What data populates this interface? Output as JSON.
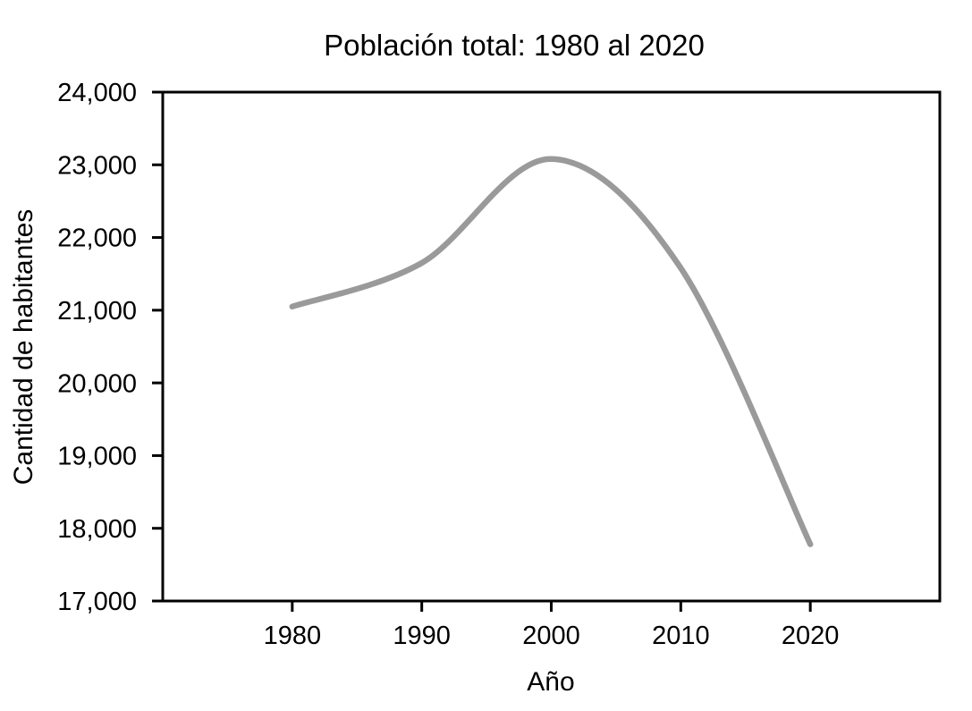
{
  "chart_data": {
    "type": "line",
    "title": "Población total: 1980 al 2020",
    "xlabel": "Año",
    "ylabel": "Cantidad de habitantes",
    "x": [
      1980,
      1990,
      2000,
      2010,
      2020
    ],
    "series": [
      {
        "name": "Población total",
        "values": [
          21050,
          21650,
          23080,
          21580,
          17780
        ]
      }
    ],
    "xlim": [
      1970,
      2030
    ],
    "ylim": [
      17000,
      24000
    ],
    "x_ticks": [
      {
        "value": 1980,
        "label": "1980"
      },
      {
        "value": 1990,
        "label": "1990"
      },
      {
        "value": 2000,
        "label": "2000"
      },
      {
        "value": 2010,
        "label": "2010"
      },
      {
        "value": 2020,
        "label": "2020"
      }
    ],
    "y_ticks": [
      {
        "value": 17000,
        "label": "17,000"
      },
      {
        "value": 18000,
        "label": "18,000"
      },
      {
        "value": 19000,
        "label": "19,000"
      },
      {
        "value": 20000,
        "label": "20,000"
      },
      {
        "value": 21000,
        "label": "21,000"
      },
      {
        "value": 22000,
        "label": "22,000"
      },
      {
        "value": 23000,
        "label": "23,000"
      },
      {
        "value": 24000,
        "label": "24,000"
      }
    ],
    "grid": false,
    "legend": false,
    "smooth": true,
    "line_color": "#9a9a9a",
    "line_width": 6.5,
    "axis_color": "#000000"
  }
}
